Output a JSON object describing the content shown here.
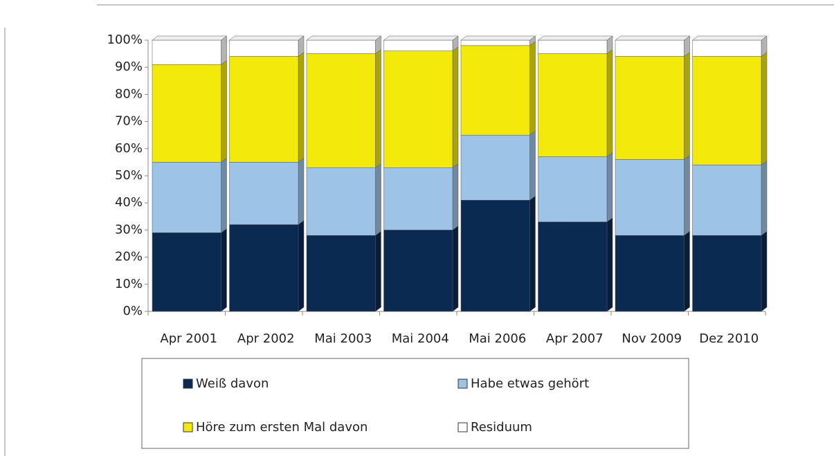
{
  "chart_data": {
    "type": "stacked_bar_3d",
    "categories": [
      "Apr 2001",
      "Apr 2002",
      "Mai 2003",
      "Mai 2004",
      "Mai 2006",
      "Apr 2007",
      "Nov 2009",
      "Dez 2010"
    ],
    "series": [
      {
        "name": "Weiß davon",
        "color": "#0b2a51",
        "values": [
          29,
          32,
          28,
          30,
          41,
          33,
          28,
          28
        ]
      },
      {
        "name": "Habe etwas gehört",
        "color": "#9dc3e6",
        "values": [
          26,
          23,
          25,
          23,
          24,
          24,
          28,
          26
        ]
      },
      {
        "name": "Höre zum ersten Mal davon",
        "color": "#f3ea0c",
        "values": [
          36,
          39,
          42,
          43,
          33,
          38,
          38,
          40
        ]
      },
      {
        "name": "Residuum",
        "color": "#ffffff",
        "values": [
          9,
          6,
          5,
          4,
          2,
          5,
          6,
          6
        ]
      }
    ],
    "ylim": [
      0,
      100
    ],
    "yticks": [
      {
        "value": 0,
        "label": "0%"
      },
      {
        "value": 10,
        "label": "10%"
      },
      {
        "value": 20,
        "label": "20%"
      },
      {
        "value": 30,
        "label": "30%"
      },
      {
        "value": 40,
        "label": "40%"
      },
      {
        "value": 50,
        "label": "50%"
      },
      {
        "value": 60,
        "label": "60%"
      },
      {
        "value": 70,
        "label": "70%"
      },
      {
        "value": 80,
        "label": "80%"
      },
      {
        "value": 90,
        "label": "90%"
      },
      {
        "value": 100,
        "label": "100%"
      }
    ],
    "legend": "bottom"
  }
}
